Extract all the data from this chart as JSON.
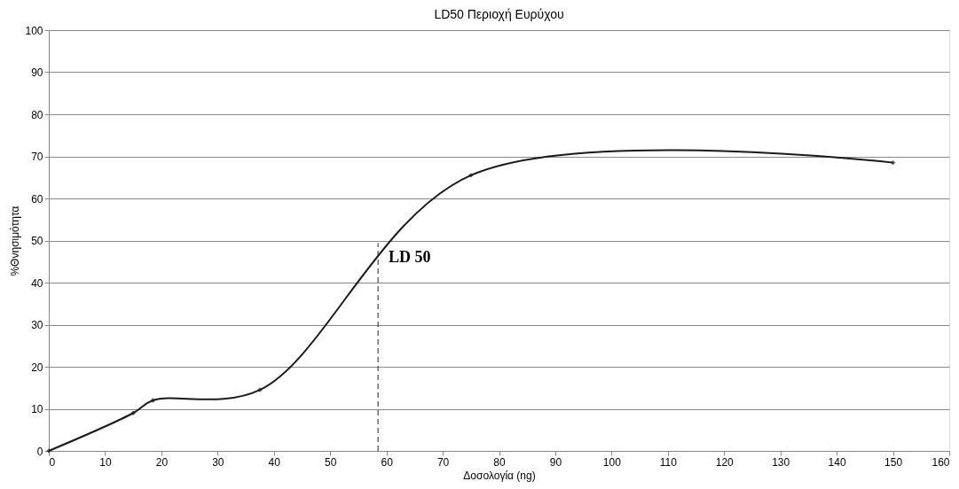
{
  "chart_data": {
    "type": "line",
    "title": "LD50 Περιοχή Ευρύχου",
    "xlabel": "Δοσολογία (ng)",
    "ylabel": "%Θνησιμότητα",
    "x": [
      0,
      15,
      18.5,
      37.5,
      75,
      150
    ],
    "series": [
      {
        "color": "#1a1a1a",
        "values": [
          0,
          9,
          12,
          14.5,
          65.5,
          68.5
        ]
      }
    ],
    "xlim": [
      0,
      160
    ],
    "xticks": [
      0,
      10,
      20,
      30,
      40,
      50,
      60,
      70,
      80,
      90,
      100,
      110,
      120,
      130,
      140,
      150,
      160
    ],
    "ylim": [
      0,
      100
    ],
    "yticks": [
      0,
      10,
      20,
      30,
      40,
      50,
      60,
      70,
      80,
      90,
      100
    ],
    "ref_lines": [
      {
        "axis": "x",
        "value": 58.5,
        "label": "LD 50",
        "line_style": "dashed"
      }
    ],
    "grid": "y",
    "marker": "diamond",
    "line_style": "solid"
  }
}
